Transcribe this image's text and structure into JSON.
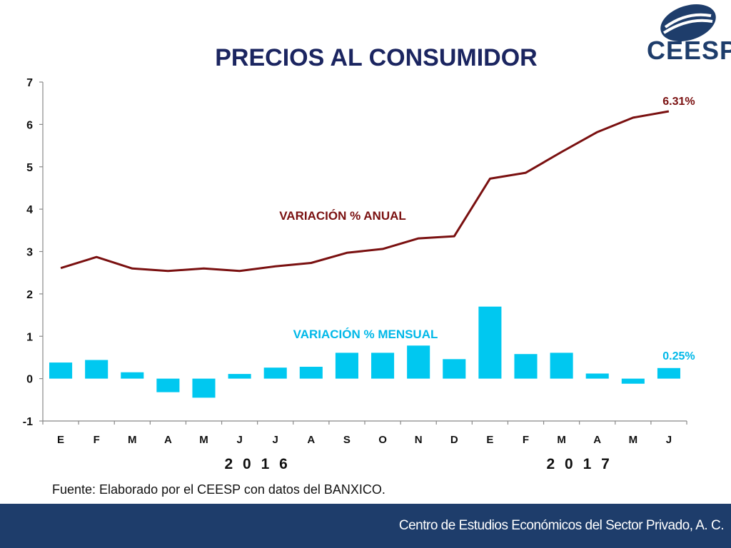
{
  "header": {
    "title": "PRECIOS AL CONSUMIDOR",
    "logo_text": "CEESP"
  },
  "source_note": "Fuente: Elaborado por el CEESP con datos del BANXICO.",
  "footer": {
    "text": "Centro de Estudios Económicos del Sector Privado, A. C."
  },
  "colors": {
    "annual_line": "#7a1010",
    "monthly_bar": "#00c8f0",
    "footer_bg": "#1e3d6b",
    "title": "#1b2560"
  },
  "chart_data": {
    "type": "bar",
    "title": "PRECIOS AL CONSUMIDOR",
    "categories": [
      "E",
      "F",
      "M",
      "A",
      "M",
      "J",
      "J",
      "A",
      "S",
      "O",
      "N",
      "D",
      "E",
      "F",
      "M",
      "A",
      "M",
      "J"
    ],
    "year_labels": [
      {
        "label": "2016",
        "start_index": 0,
        "end_index": 11
      },
      {
        "label": "2017",
        "start_index": 12,
        "end_index": 17
      }
    ],
    "ylim": [
      -1,
      7
    ],
    "yticks": [
      -1,
      0,
      1,
      2,
      3,
      4,
      5,
      6,
      7
    ],
    "grid": false,
    "series": [
      {
        "name": "VARIACIÓN % ANUAL",
        "kind": "line",
        "values": [
          2.61,
          2.87,
          2.6,
          2.54,
          2.6,
          2.54,
          2.65,
          2.73,
          2.97,
          3.06,
          3.31,
          3.36,
          4.72,
          4.86,
          5.35,
          5.82,
          6.16,
          6.31
        ],
        "end_label": "6.31%"
      },
      {
        "name": "VARIACIÓN % MENSUAL",
        "kind": "bar",
        "values": [
          0.38,
          0.44,
          0.15,
          -0.32,
          -0.45,
          0.11,
          0.26,
          0.28,
          0.61,
          0.61,
          0.78,
          0.46,
          1.7,
          0.58,
          0.61,
          0.12,
          -0.12,
          0.25
        ],
        "end_label": "0.25%"
      }
    ]
  }
}
